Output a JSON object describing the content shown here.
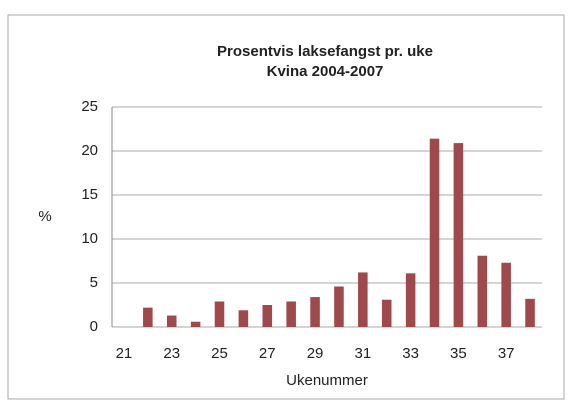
{
  "chart_data": {
    "type": "bar",
    "title": "Prosentvis laksefangst pr. uke",
    "subtitle": "Kvina 2004-2007",
    "ylabel": "%",
    "xlabel": "Ukenummer",
    "categories": [
      "21",
      null,
      "23",
      null,
      "25",
      null,
      "27",
      null,
      "29",
      null,
      "31",
      null,
      "33",
      null,
      "35",
      null,
      "37",
      null
    ],
    "values": [
      0,
      2.2,
      1.3,
      0.6,
      2.9,
      1.9,
      2.5,
      2.9,
      3.4,
      4.6,
      6.2,
      3.1,
      6.1,
      21.4,
      20.9,
      8.1,
      7.3,
      3.2
    ],
    "color": "#9e4a4d",
    "ylim": [
      0,
      25
    ],
    "yticks": [
      0,
      5,
      10,
      15,
      20,
      25
    ],
    "grid": true
  }
}
